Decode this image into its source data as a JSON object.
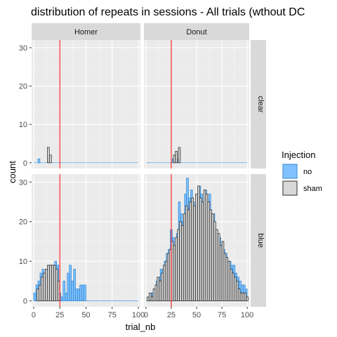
{
  "chart_data": {
    "type": "bar",
    "title": "distribution of repeats in sessions - All trials (wthout DC",
    "xlabel": "trial_nb",
    "ylabel": "count",
    "xlim": [
      -2,
      102
    ],
    "ylim": [
      -1.5,
      32
    ],
    "xticks": [
      "0",
      "25",
      "50",
      "75",
      "100"
    ],
    "yticks": [
      "0",
      "10",
      "20",
      "30"
    ],
    "facet_cols": [
      "Homer",
      "Donut"
    ],
    "facet_rows": [
      "clear",
      "blue"
    ],
    "vline_x": 25,
    "vline_color": "#ff0000",
    "panel_bg": "#ebebeb",
    "strip_bg": "#d9d9d9",
    "legend": {
      "title": "Injection",
      "position": "right",
      "entries": [
        {
          "label": "no",
          "color": "#80c1ff",
          "stroke": "#3a8fd6"
        },
        {
          "label": "sham",
          "color": "#d8d8d8",
          "stroke": "#333333"
        }
      ]
    },
    "panels": [
      {
        "col": "Homer",
        "row": "clear",
        "series": [
          {
            "name": "no",
            "x": [
              5
            ],
            "y": [
              1
            ]
          },
          {
            "name": "sham",
            "x": [
              14,
              16
            ],
            "y": [
              4,
              2
            ]
          }
        ]
      },
      {
        "col": "Donut",
        "row": "clear",
        "series": [
          {
            "name": "no",
            "x": [
              27,
              31
            ],
            "y": [
              1,
              1
            ]
          },
          {
            "name": "sham",
            "x": [
              28,
              30,
              33
            ],
            "y": [
              2,
              3,
              4
            ]
          }
        ]
      },
      {
        "col": "Homer",
        "row": "blue",
        "series": [
          {
            "name": "no",
            "x": [
              1,
              3,
              5,
              7,
              9,
              11,
              13,
              15,
              17,
              19,
              21,
              23,
              25,
              27,
              29,
              31,
              33,
              35,
              37,
              39,
              41,
              43,
              45,
              47,
              49
            ],
            "y": [
              2,
              4,
              5,
              7,
              8,
              5,
              7,
              8,
              9,
              7,
              10,
              9,
              2,
              1,
              5,
              2,
              7,
              9,
              5,
              8,
              3,
              3,
              4,
              4,
              4
            ]
          },
          {
            "name": "sham",
            "x": [
              4,
              6,
              8,
              10,
              12,
              14,
              16,
              18,
              20,
              22,
              24
            ],
            "y": [
              3,
              4,
              6,
              7,
              8,
              9,
              9,
              9,
              9,
              8,
              5
            ]
          }
        ]
      },
      {
        "col": "Donut",
        "row": "blue",
        "series": [
          {
            "name": "no",
            "x": [
              3,
              5,
              7,
              9,
              11,
              13,
              15,
              17,
              19,
              21,
              23,
              25,
              27,
              29,
              31,
              33,
              35,
              37,
              39,
              41,
              43,
              45,
              47,
              49,
              51,
              53,
              55,
              57,
              59,
              61,
              63,
              65,
              67,
              69,
              71,
              73,
              75,
              77,
              79,
              81,
              83,
              85,
              87,
              89,
              91,
              93,
              95,
              97,
              99
            ],
            "y": [
              1,
              2,
              2,
              3,
              5,
              6,
              8,
              8,
              10,
              12,
              13,
              18,
              16,
              12,
              17,
              25,
              22,
              20,
              27,
              31,
              26,
              28,
              25,
              24,
              23,
              29,
              27,
              25,
              28,
              21,
              27,
              20,
              22,
              17,
              15,
              16,
              14,
              13,
              12,
              10,
              10,
              9,
              9,
              7,
              6,
              5,
              4,
              4,
              3
            ]
          },
          {
            "name": "sham",
            "x": [
              2,
              4,
              6,
              8,
              10,
              12,
              14,
              16,
              18,
              20,
              22,
              24,
              26,
              28,
              30,
              32,
              34,
              36,
              38,
              40,
              42,
              44,
              46,
              48,
              50,
              52,
              54,
              56,
              58,
              60,
              62,
              64,
              66,
              68,
              70,
              72,
              74,
              76,
              78,
              80,
              82,
              84,
              86,
              88,
              90,
              92,
              94,
              96,
              98,
              100
            ],
            "y": [
              1,
              2,
              1,
              3,
              4,
              6,
              5,
              7,
              9,
              10,
              12,
              13,
              15,
              14,
              16,
              18,
              20,
              19,
              22,
              24,
              23,
              25,
              26,
              24,
              27,
              29,
              26,
              25,
              28,
              27,
              25,
              23,
              22,
              20,
              18,
              17,
              14,
              15,
              12,
              11,
              10,
              8,
              7,
              6,
              5,
              3,
              2,
              2,
              2,
              1
            ]
          }
        ]
      }
    ]
  }
}
